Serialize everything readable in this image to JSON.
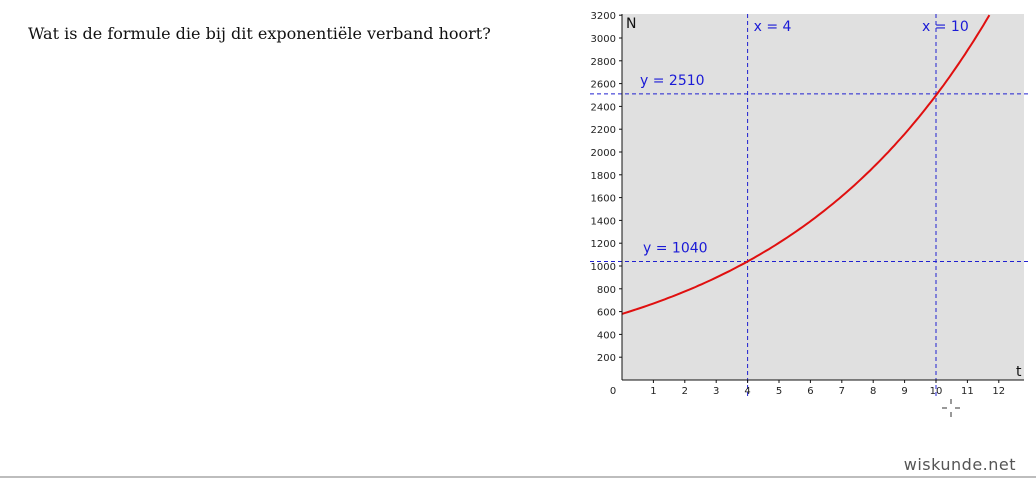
{
  "question": "Wat is de formule die bij dit exponentiële verband hoort?",
  "watermark": "wiskunde.net",
  "chart_data": {
    "type": "line",
    "xlabel": "t",
    "ylabel": "N",
    "xlim": [
      0,
      12.8
    ],
    "ylim": [
      0,
      3200
    ],
    "x_ticks": [
      0,
      1,
      2,
      3,
      4,
      5,
      6,
      7,
      8,
      9,
      10,
      11,
      12
    ],
    "y_ticks": [
      200,
      400,
      600,
      800,
      1000,
      1200,
      1400,
      1600,
      1800,
      2000,
      2200,
      2400,
      2600,
      2800,
      3000,
      3200
    ],
    "grid": false,
    "series": [
      {
        "color": "#e01010",
        "x": [
          0,
          1,
          2,
          3,
          4,
          5,
          6,
          7,
          8,
          9,
          10,
          11,
          11.7
        ],
        "values": [
          580,
          671,
          776,
          899,
          1040,
          1204,
          1393,
          1612,
          1866,
          2160,
          2510,
          2900,
          3200
        ]
      }
    ],
    "annotations": [
      {
        "label": "x = 4",
        "orientation": "vertical",
        "value": 4
      },
      {
        "label": "x = 10",
        "orientation": "vertical",
        "value": 10
      },
      {
        "label": "y = 2510",
        "orientation": "horizontal",
        "value": 2510
      },
      {
        "label": "y = 1040",
        "orientation": "horizontal",
        "value": 1040
      }
    ],
    "colors": {
      "curve": "#e01010",
      "guides": "#2020d0",
      "background": "#e0e0e0"
    }
  }
}
